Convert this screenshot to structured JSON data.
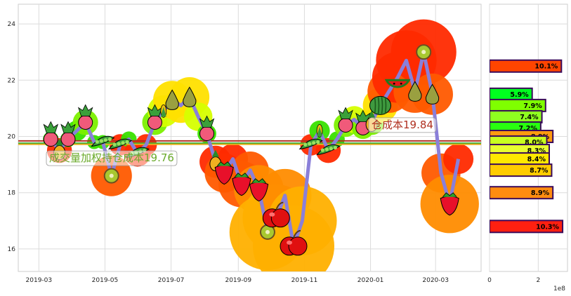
{
  "chart_data": [
    {
      "type": "line",
      "title": "",
      "xlabel": "",
      "ylabel": "",
      "ylim": [
        15.2,
        24.7
      ],
      "grid": true,
      "x_ticks": [
        "2019-03",
        "2019-05",
        "2019-07",
        "2019-09",
        "2019-11",
        "2020-01",
        "2020-03"
      ],
      "y_ticks": [
        "16",
        "18",
        "20",
        "22",
        "24"
      ],
      "series": [
        {
          "color": "#8a7fd9",
          "x": [
            "2019-03-12",
            "2019-03-20",
            "2019-03-28",
            "2019-04-05",
            "2019-04-13",
            "2019-04-21",
            "2019-04-29",
            "2019-05-07",
            "2019-05-15",
            "2019-05-23",
            "2019-05-31",
            "2019-06-08",
            "2019-06-16",
            "2019-06-24",
            "2019-07-02",
            "2019-07-10",
            "2019-07-18",
            "2019-07-26",
            "2019-08-03",
            "2019-08-11",
            "2019-08-19",
            "2019-08-27",
            "2019-09-04",
            "2019-09-12",
            "2019-09-20",
            "2019-09-28",
            "2019-10-06",
            "2019-10-14",
            "2019-10-22",
            "2019-10-30",
            "2019-11-07",
            "2019-11-15",
            "2019-11-23",
            "2019-12-01",
            "2019-12-09",
            "2019-12-17",
            "2019-12-25",
            "2020-01-02",
            "2020-01-10",
            "2020-01-18",
            "2020-01-26",
            "2020-02-03",
            "2020-02-11",
            "2020-02-19",
            "2020-02-27",
            "2020-03-06",
            "2020-03-14",
            "2020-03-22"
          ],
          "y": [
            19.9,
            19.5,
            19.9,
            20.2,
            20.5,
            19.8,
            19.8,
            18.6,
            19.7,
            19.9,
            19.4,
            19.7,
            20.5,
            20.9,
            21.3,
            21.1,
            21.4,
            20.7,
            20.1,
            19.1,
            18.7,
            19.2,
            18.3,
            18.8,
            18.1,
            16.6,
            17.1,
            17.9,
            16.1,
            17.0,
            19.7,
            20.2,
            19.5,
            19.9,
            20.4,
            20.6,
            20.3,
            20.5,
            21.1,
            21.6,
            22.1,
            22.7,
            21.6,
            23.0,
            21.5,
            18.7,
            17.6,
            19.2
          ]
        }
      ],
      "bubbles_note": "",
      "annotations": [
        {
          "text": "成交量加权持仓成本19.76",
          "color": "#6aaa2a",
          "value": 19.76
        },
        {
          "text": "仓成本19.84",
          "color": "#b03020",
          "value": 19.84
        }
      ],
      "horizontal_lines": [
        {
          "value": 19.76,
          "color": "#33aa33"
        },
        {
          "value": 19.84,
          "color": "#b03020"
        },
        {
          "value": 19.72,
          "color": "#e6b020"
        }
      ]
    },
    {
      "type": "bar",
      "orientation": "horizontal",
      "x_scale_note": "1e8",
      "x_ticks": [
        "0",
        "2"
      ],
      "xlim": [
        0,
        3.2
      ],
      "bars": [
        {
          "price": 22.5,
          "value": 2.95,
          "label": "10.1%",
          "color": "#ff4500"
        },
        {
          "price": 21.5,
          "value": 1.75,
          "label": "5.9%",
          "color": "#00ff1f"
        },
        {
          "price": 21.1,
          "value": 2.3,
          "label": "7.9%",
          "color": "#7fff00"
        },
        {
          "price": 20.7,
          "value": 2.15,
          "label": "7.4%",
          "color": "#8fff20"
        },
        {
          "price": 20.3,
          "value": 2.1,
          "label": "7.2%",
          "color": "#28ff10"
        },
        {
          "price": 20.0,
          "value": 2.6,
          "label": "8.9%",
          "color": "#ff9a10"
        },
        {
          "price": 19.8,
          "value": 2.35,
          "label": "8.0%",
          "color": "#c8ff20"
        },
        {
          "price": 19.5,
          "value": 2.45,
          "label": "8.3%",
          "color": "#e8ff30"
        },
        {
          "price": 19.2,
          "value": 2.45,
          "label": "8.4%",
          "color": "#ffe800"
        },
        {
          "price": 18.8,
          "value": 2.55,
          "label": "8.7%",
          "color": "#ffcc00"
        },
        {
          "price": 18.0,
          "value": 2.6,
          "label": "8.9%",
          "color": "#ff8c10"
        },
        {
          "price": 16.8,
          "value": 3.0,
          "label": "10.3%",
          "color": "#ff2010"
        }
      ],
      "x_exponent": "1e8"
    }
  ]
}
